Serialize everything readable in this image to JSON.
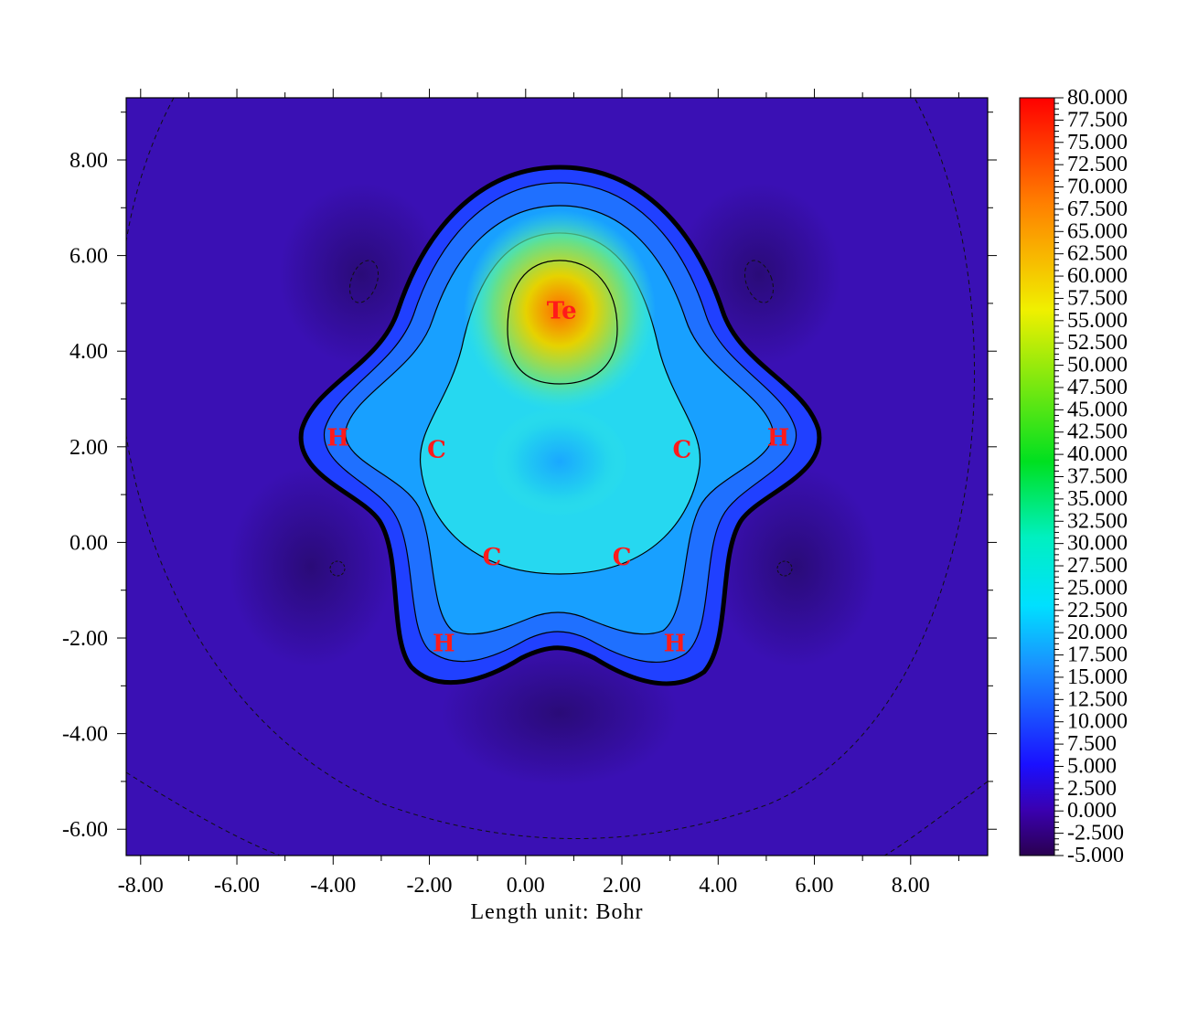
{
  "chart_data": {
    "type": "heatmap",
    "title": "",
    "xlabel": "Length unit: Bohr",
    "ylabel": "",
    "xlim": [
      -8.3,
      9.6
    ],
    "ylim": [
      -6.55,
      9.3
    ],
    "x_ticks": [
      {
        "value": -8,
        "label": "-8.00"
      },
      {
        "value": -6,
        "label": "-6.00"
      },
      {
        "value": -4,
        "label": "-4.00"
      },
      {
        "value": -2,
        "label": "-2.00"
      },
      {
        "value": 0,
        "label": "0.00"
      },
      {
        "value": 2,
        "label": "2.00"
      },
      {
        "value": 4,
        "label": "4.00"
      },
      {
        "value": 6,
        "label": "6.00"
      },
      {
        "value": 8,
        "label": "8.00"
      }
    ],
    "y_ticks": [
      {
        "value": 8,
        "label": "8.00"
      },
      {
        "value": 6,
        "label": "6.00"
      },
      {
        "value": 4,
        "label": "4.00"
      },
      {
        "value": 2,
        "label": "2.00"
      },
      {
        "value": 0,
        "label": "0.00"
      },
      {
        "value": -2,
        "label": "-2.00"
      },
      {
        "value": -4,
        "label": "-4.00"
      },
      {
        "value": -6,
        "label": "-6.00"
      }
    ],
    "colorbar": {
      "min": -5.0,
      "max": 80.0,
      "labels": [
        "80.000",
        "77.500",
        "75.000",
        "72.500",
        "70.000",
        "67.500",
        "65.000",
        "62.500",
        "60.000",
        "57.500",
        "55.000",
        "52.500",
        "50.000",
        "47.500",
        "45.000",
        "42.500",
        "40.000",
        "37.500",
        "35.000",
        "32.500",
        "30.000",
        "27.500",
        "25.000",
        "22.500",
        "20.000",
        "17.500",
        "15.000",
        "12.500",
        "10.000",
        "7.500",
        "5.000",
        "2.500",
        "0.000",
        "-2.500",
        "-5.000"
      ]
    },
    "atoms": [
      {
        "label": "Te",
        "x": 0.75,
        "y": 4.85
      },
      {
        "label": "C",
        "x": -1.85,
        "y": 1.95
      },
      {
        "label": "C",
        "x": 3.25,
        "y": 1.95
      },
      {
        "label": "C",
        "x": -0.7,
        "y": -0.3
      },
      {
        "label": "C",
        "x": 2.0,
        "y": -0.3
      },
      {
        "label": "H",
        "x": -3.9,
        "y": 2.2
      },
      {
        "label": "H",
        "x": 5.25,
        "y": 2.2
      },
      {
        "label": "H",
        "x": -1.7,
        "y": -2.1
      },
      {
        "label": "H",
        "x": 3.1,
        "y": -2.1
      }
    ],
    "grid": false,
    "legend": "colorbar-right"
  }
}
